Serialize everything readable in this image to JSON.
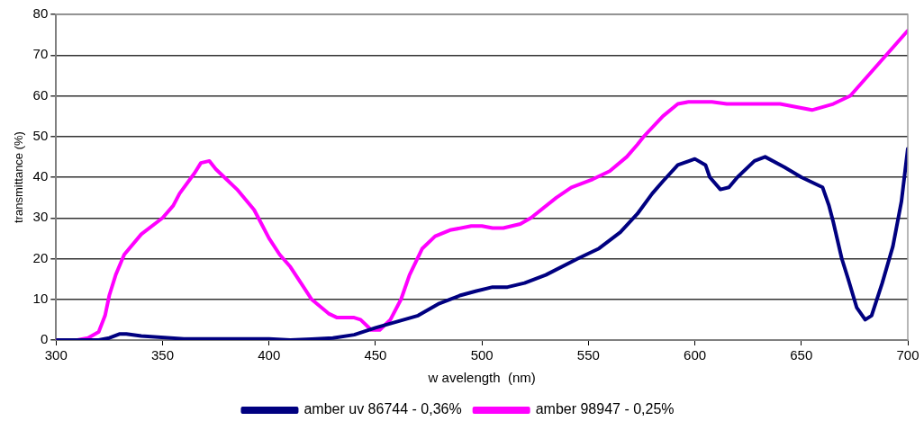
{
  "chart_data": {
    "type": "line",
    "xlabel": "w avelength  (nm)",
    "ylabel": "transmittance (%)",
    "xlim": [
      300,
      700
    ],
    "xticks": [
      300,
      350,
      400,
      450,
      500,
      550,
      600,
      650,
      700
    ],
    "ylim": [
      0,
      80
    ],
    "yticks": [
      0,
      10,
      20,
      30,
      40,
      50,
      60,
      70,
      80
    ],
    "grid": "y",
    "legend": "bottom",
    "marker": "none",
    "line_style": "solid",
    "series": [
      {
        "name": "amber uv 86744 - 0,36%",
        "color": "#000080",
        "x": [
          300,
          320,
          325,
          330,
          333,
          340,
          360,
          380,
          400,
          410,
          420,
          430,
          440,
          450,
          460,
          470,
          480,
          490,
          497,
          505,
          512,
          520,
          530,
          545,
          555,
          565,
          573,
          580,
          585,
          592,
          600,
          605,
          607,
          612,
          616,
          620,
          628,
          633,
          642,
          650,
          660,
          663,
          665,
          669,
          672,
          676,
          680,
          683,
          688,
          693,
          697,
          700
        ],
        "values": [
          0,
          0,
          0.5,
          1.5,
          1.5,
          1,
          0.3,
          0.3,
          0.3,
          0,
          0.2,
          0.5,
          1.3,
          3,
          4.5,
          6,
          9,
          11,
          12,
          13,
          13,
          14,
          16,
          20,
          22.5,
          26.5,
          31,
          36,
          39,
          43,
          44.5,
          43,
          40,
          37,
          37.5,
          40,
          44,
          45,
          42.5,
          40,
          37.5,
          33,
          29,
          20,
          15,
          8,
          5,
          6,
          14,
          23,
          34,
          47
        ]
      },
      {
        "name": "amber 98947 - 0,25%",
        "color": "#ff00ff",
        "x": [
          300,
          310,
          315,
          320,
          323,
          325,
          328,
          332,
          340,
          350,
          355,
          358,
          365,
          368,
          372,
          375,
          385,
          393,
          397,
          400,
          405,
          410,
          415,
          420,
          428,
          432,
          440,
          443,
          448,
          452,
          457,
          462,
          466,
          472,
          478,
          485,
          495,
          500,
          505,
          510,
          518,
          523,
          535,
          542,
          552,
          560,
          568,
          573,
          576,
          585,
          592,
          597,
          608,
          615,
          640,
          650,
          655,
          665,
          673,
          700
        ],
        "values": [
          0,
          0,
          0.5,
          2,
          6,
          11,
          16,
          21,
          26,
          30,
          33,
          36,
          41,
          43.5,
          44,
          42,
          37,
          32,
          28,
          25,
          21,
          18,
          14,
          10,
          6.5,
          5.5,
          5.5,
          5,
          2.5,
          2.5,
          5,
          10,
          16,
          22.5,
          25.5,
          27,
          28,
          28,
          27.5,
          27.5,
          28.5,
          30,
          35,
          37.5,
          39.5,
          41.5,
          45,
          48,
          50,
          55,
          58,
          58.5,
          58.5,
          58,
          58,
          57,
          56.5,
          58,
          60,
          76
        ]
      }
    ]
  }
}
